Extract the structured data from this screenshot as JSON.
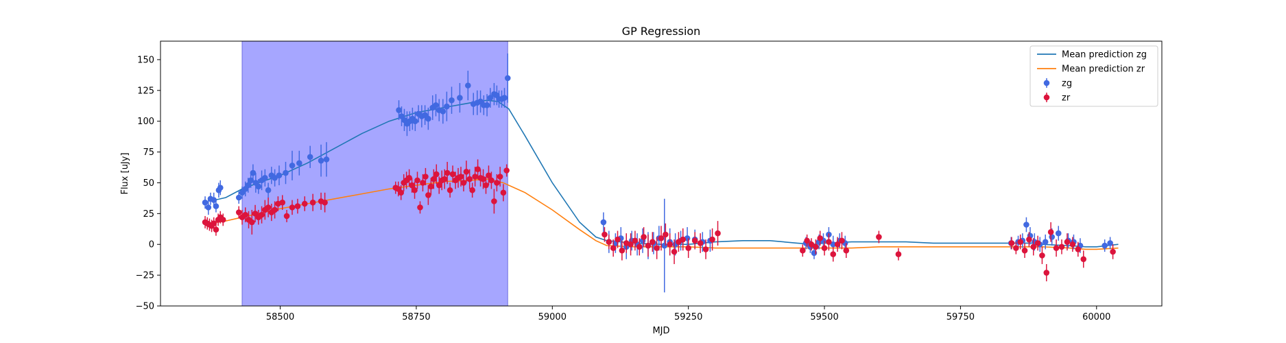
{
  "chart_data": {
    "type": "scatter",
    "title": "GP Regression",
    "xlabel": "MJD",
    "ylabel": "Flux [uJy]",
    "xlim": [
      58280,
      60120
    ],
    "ylim": [
      -50,
      165
    ],
    "x_ticks": [
      58500,
      58750,
      59000,
      59250,
      59500,
      59750,
      60000
    ],
    "y_ticks": [
      -50,
      -25,
      0,
      25,
      50,
      75,
      100,
      125,
      150
    ],
    "grid": false,
    "legend_position": "top-right",
    "shaded_region": {
      "x_start": 58430,
      "x_end": 58918,
      "color": "#a6a6ff"
    },
    "series": [
      {
        "name": "Mean prediction zg",
        "kind": "line",
        "color": "#1f77b4",
        "x": [
          58370,
          58400,
          58430,
          58460,
          58500,
          58550,
          58600,
          58650,
          58700,
          58750,
          58800,
          58850,
          58880,
          58900,
          58920,
          58950,
          59000,
          59050,
          59080,
          59100,
          59150,
          59200,
          59250,
          59300,
          59350,
          59400,
          59450,
          59480,
          59500,
          59550,
          59600,
          59650,
          59700,
          59750,
          59800,
          59850,
          59880,
          59900,
          59950,
          59980,
          60000,
          60040
        ],
        "y": [
          35,
          38,
          45,
          50,
          56,
          66,
          78,
          90,
          100,
          107,
          111,
          115,
          117,
          116,
          110,
          88,
          50,
          18,
          6,
          3,
          1,
          0,
          0,
          2,
          3,
          3,
          1,
          0,
          1,
          2,
          2,
          2,
          1,
          1,
          1,
          1,
          1,
          0,
          -1,
          -2,
          -2,
          0
        ]
      },
      {
        "name": "Mean prediction zr",
        "kind": "line",
        "color": "#ff7f0e",
        "x": [
          58370,
          58400,
          58430,
          58460,
          58500,
          58550,
          58600,
          58650,
          58700,
          58750,
          58800,
          58850,
          58880,
          58910,
          58950,
          59000,
          59050,
          59080,
          59100,
          59150,
          59200,
          59250,
          59300,
          59350,
          59400,
          59450,
          59480,
          59500,
          59550,
          59600,
          59650,
          59700,
          59750,
          59800,
          59850,
          59880,
          59900,
          59950,
          59980,
          60000,
          60040
        ],
        "y": [
          17,
          19,
          22,
          25,
          29,
          33,
          37,
          41,
          45,
          48,
          51,
          52,
          53,
          50,
          42,
          28,
          12,
          3,
          -1,
          -2,
          -2,
          -2,
          -3,
          -3,
          -3,
          -3,
          -3,
          -3,
          -3,
          -2,
          -2,
          -2,
          -2,
          -2,
          -2,
          -2,
          -2,
          -3,
          -4,
          -4,
          -3
        ]
      },
      {
        "name": "zg",
        "kind": "errorbar",
        "color": "#4169e1",
        "x": [
          58362,
          58368,
          58372,
          58378,
          58382,
          58387,
          58390,
          58424,
          58430,
          58436,
          58441,
          58446,
          58450,
          58455,
          58460,
          58466,
          58472,
          58478,
          58484,
          58490,
          58498,
          58510,
          58522,
          58535,
          58555,
          58575,
          58585,
          58718,
          58723,
          58728,
          58733,
          58738,
          58743,
          58748,
          58754,
          58760,
          58766,
          58772,
          58780,
          58786,
          58792,
          58799,
          58806,
          58815,
          58830,
          58845,
          58855,
          58862,
          58868,
          58874,
          58880,
          58886,
          58893,
          58898,
          58902,
          58907,
          58912,
          58918,
          59094,
          59104,
          59116,
          59126,
          59136,
          59146,
          59156,
          59166,
          59176,
          59186,
          59196,
          59206,
          59216,
          59226,
          59236,
          59248,
          59262,
          59276,
          59290,
          59466,
          59474,
          59481,
          59490,
          59498,
          59508,
          59516,
          59528,
          59538,
          59843,
          59856,
          59864,
          59871,
          59878,
          59886,
          59896,
          59906,
          59918,
          59930,
          59948,
          59958,
          59970,
          60015,
          60025
        ],
        "y": [
          34,
          30,
          37,
          36,
          31,
          44,
          46,
          38,
          42,
          45,
          48,
          52,
          58,
          50,
          47,
          52,
          54,
          44,
          56,
          54,
          56,
          58,
          64,
          66,
          71,
          68,
          69,
          109,
          104,
          101,
          98,
          100,
          102,
          100,
          106,
          104,
          105,
          102,
          111,
          113,
          109,
          108,
          112,
          117,
          119,
          129,
          114,
          115,
          116,
          113,
          113,
          119,
          122,
          121,
          118,
          118,
          119,
          135,
          18,
          2,
          1,
          5,
          -2,
          3,
          0,
          3,
          -1,
          1,
          5,
          -1,
          2,
          0,
          3,
          5,
          4,
          2,
          3,
          1,
          -2,
          -7,
          2,
          3,
          8,
          0,
          3,
          1,
          1,
          2,
          3,
          16,
          7,
          2,
          0,
          2,
          6,
          9,
          3,
          2,
          -1,
          -1,
          1
        ],
        "err": [
          5,
          6,
          5,
          6,
          5,
          6,
          6,
          5,
          5,
          6,
          6,
          6,
          7,
          8,
          6,
          8,
          7,
          6,
          7,
          7,
          8,
          9,
          12,
          10,
          9,
          13,
          14,
          8,
          8,
          9,
          10,
          8,
          9,
          8,
          7,
          9,
          8,
          9,
          10,
          9,
          9,
          10,
          12,
          11,
          12,
          12,
          9,
          10,
          9,
          8,
          9,
          8,
          9,
          8,
          7,
          7,
          8,
          20,
          8,
          9,
          8,
          9,
          10,
          8,
          9,
          10,
          11,
          9,
          10,
          38,
          11,
          9,
          8,
          9,
          8,
          8,
          9,
          5,
          5,
          5,
          6,
          6,
          6,
          7,
          6,
          6,
          5,
          5,
          6,
          6,
          7,
          7,
          6,
          6,
          7,
          6,
          6,
          6,
          6,
          5,
          5
        ]
      },
      {
        "name": "zr",
        "kind": "errorbar",
        "color": "#dc143c",
        "x": [
          58362,
          58366,
          58370,
          58374,
          58378,
          58382,
          58386,
          58390,
          58395,
          58424,
          58430,
          58436,
          58442,
          58448,
          58454,
          58460,
          58466,
          58472,
          58478,
          58484,
          58490,
          58496,
          58504,
          58512,
          58522,
          58532,
          58545,
          58560,
          58575,
          58582,
          58712,
          58717,
          58722,
          58727,
          58732,
          58737,
          58742,
          58747,
          58752,
          58757,
          58762,
          58767,
          58772,
          58777,
          58782,
          58787,
          58792,
          58797,
          58802,
          58807,
          58812,
          58817,
          58822,
          58827,
          58832,
          58837,
          58842,
          58848,
          58853,
          58858,
          58863,
          58868,
          58873,
          58878,
          58883,
          58888,
          58893,
          58898,
          58904,
          58910,
          58916,
          59096,
          59104,
          59112,
          59120,
          59128,
          59136,
          59144,
          59152,
          59160,
          59168,
          59176,
          59184,
          59192,
          59200,
          59208,
          59216,
          59224,
          59232,
          59240,
          59250,
          59262,
          59272,
          59282,
          59294,
          59304,
          59460,
          59468,
          59476,
          59484,
          59492,
          59500,
          59508,
          59516,
          59524,
          59532,
          59540,
          59600,
          59636,
          59844,
          59852,
          59860,
          59868,
          59876,
          59884,
          59892,
          59900,
          59908,
          59916,
          59926,
          59936,
          59946,
          59956,
          59966,
          59976,
          60030
        ],
        "y": [
          18,
          17,
          16,
          15,
          17,
          12,
          20,
          22,
          20,
          26,
          22,
          24,
          20,
          18,
          25,
          22,
          24,
          28,
          30,
          26,
          28,
          33,
          34,
          23,
          30,
          31,
          33,
          34,
          35,
          34,
          46,
          45,
          42,
          50,
          52,
          54,
          48,
          44,
          52,
          30,
          50,
          55,
          40,
          47,
          53,
          57,
          48,
          52,
          53,
          58,
          44,
          57,
          52,
          54,
          55,
          50,
          59,
          53,
          44,
          55,
          61,
          54,
          53,
          48,
          56,
          52,
          35,
          50,
          55,
          42,
          60,
          8,
          2,
          -3,
          4,
          -5,
          1,
          0,
          3,
          -2,
          6,
          -1,
          2,
          -3,
          5,
          8,
          0,
          -6,
          2,
          4,
          -3,
          3,
          1,
          -4,
          4,
          9,
          -5,
          3,
          0,
          -2,
          5,
          -3,
          2,
          -8,
          0,
          3,
          -5,
          6,
          -8,
          1,
          -3,
          2,
          -5,
          4,
          -2,
          1,
          -9,
          -23,
          10,
          -3,
          -2,
          2,
          0,
          -4,
          -12,
          -6
        ],
        "err": [
          5,
          5,
          5,
          5,
          5,
          5,
          5,
          5,
          5,
          5,
          6,
          6,
          7,
          10,
          7,
          6,
          7,
          8,
          8,
          7,
          7,
          6,
          6,
          5,
          6,
          6,
          6,
          7,
          7,
          8,
          5,
          6,
          6,
          7,
          7,
          7,
          6,
          7,
          7,
          5,
          7,
          7,
          8,
          7,
          8,
          8,
          7,
          8,
          8,
          9,
          6,
          7,
          7,
          8,
          8,
          7,
          9,
          8,
          6,
          8,
          8,
          7,
          8,
          7,
          8,
          7,
          10,
          7,
          8,
          7,
          5,
          6,
          6,
          7,
          7,
          8,
          8,
          9,
          8,
          7,
          8,
          9,
          8,
          9,
          10,
          9,
          9,
          10,
          8,
          9,
          8,
          7,
          8,
          8,
          9,
          10,
          5,
          5,
          5,
          6,
          6,
          6,
          7,
          6,
          6,
          7,
          6,
          5,
          5,
          5,
          5,
          6,
          6,
          6,
          7,
          6,
          7,
          7,
          8,
          7,
          6,
          7,
          6,
          6,
          7,
          6
        ]
      }
    ]
  }
}
